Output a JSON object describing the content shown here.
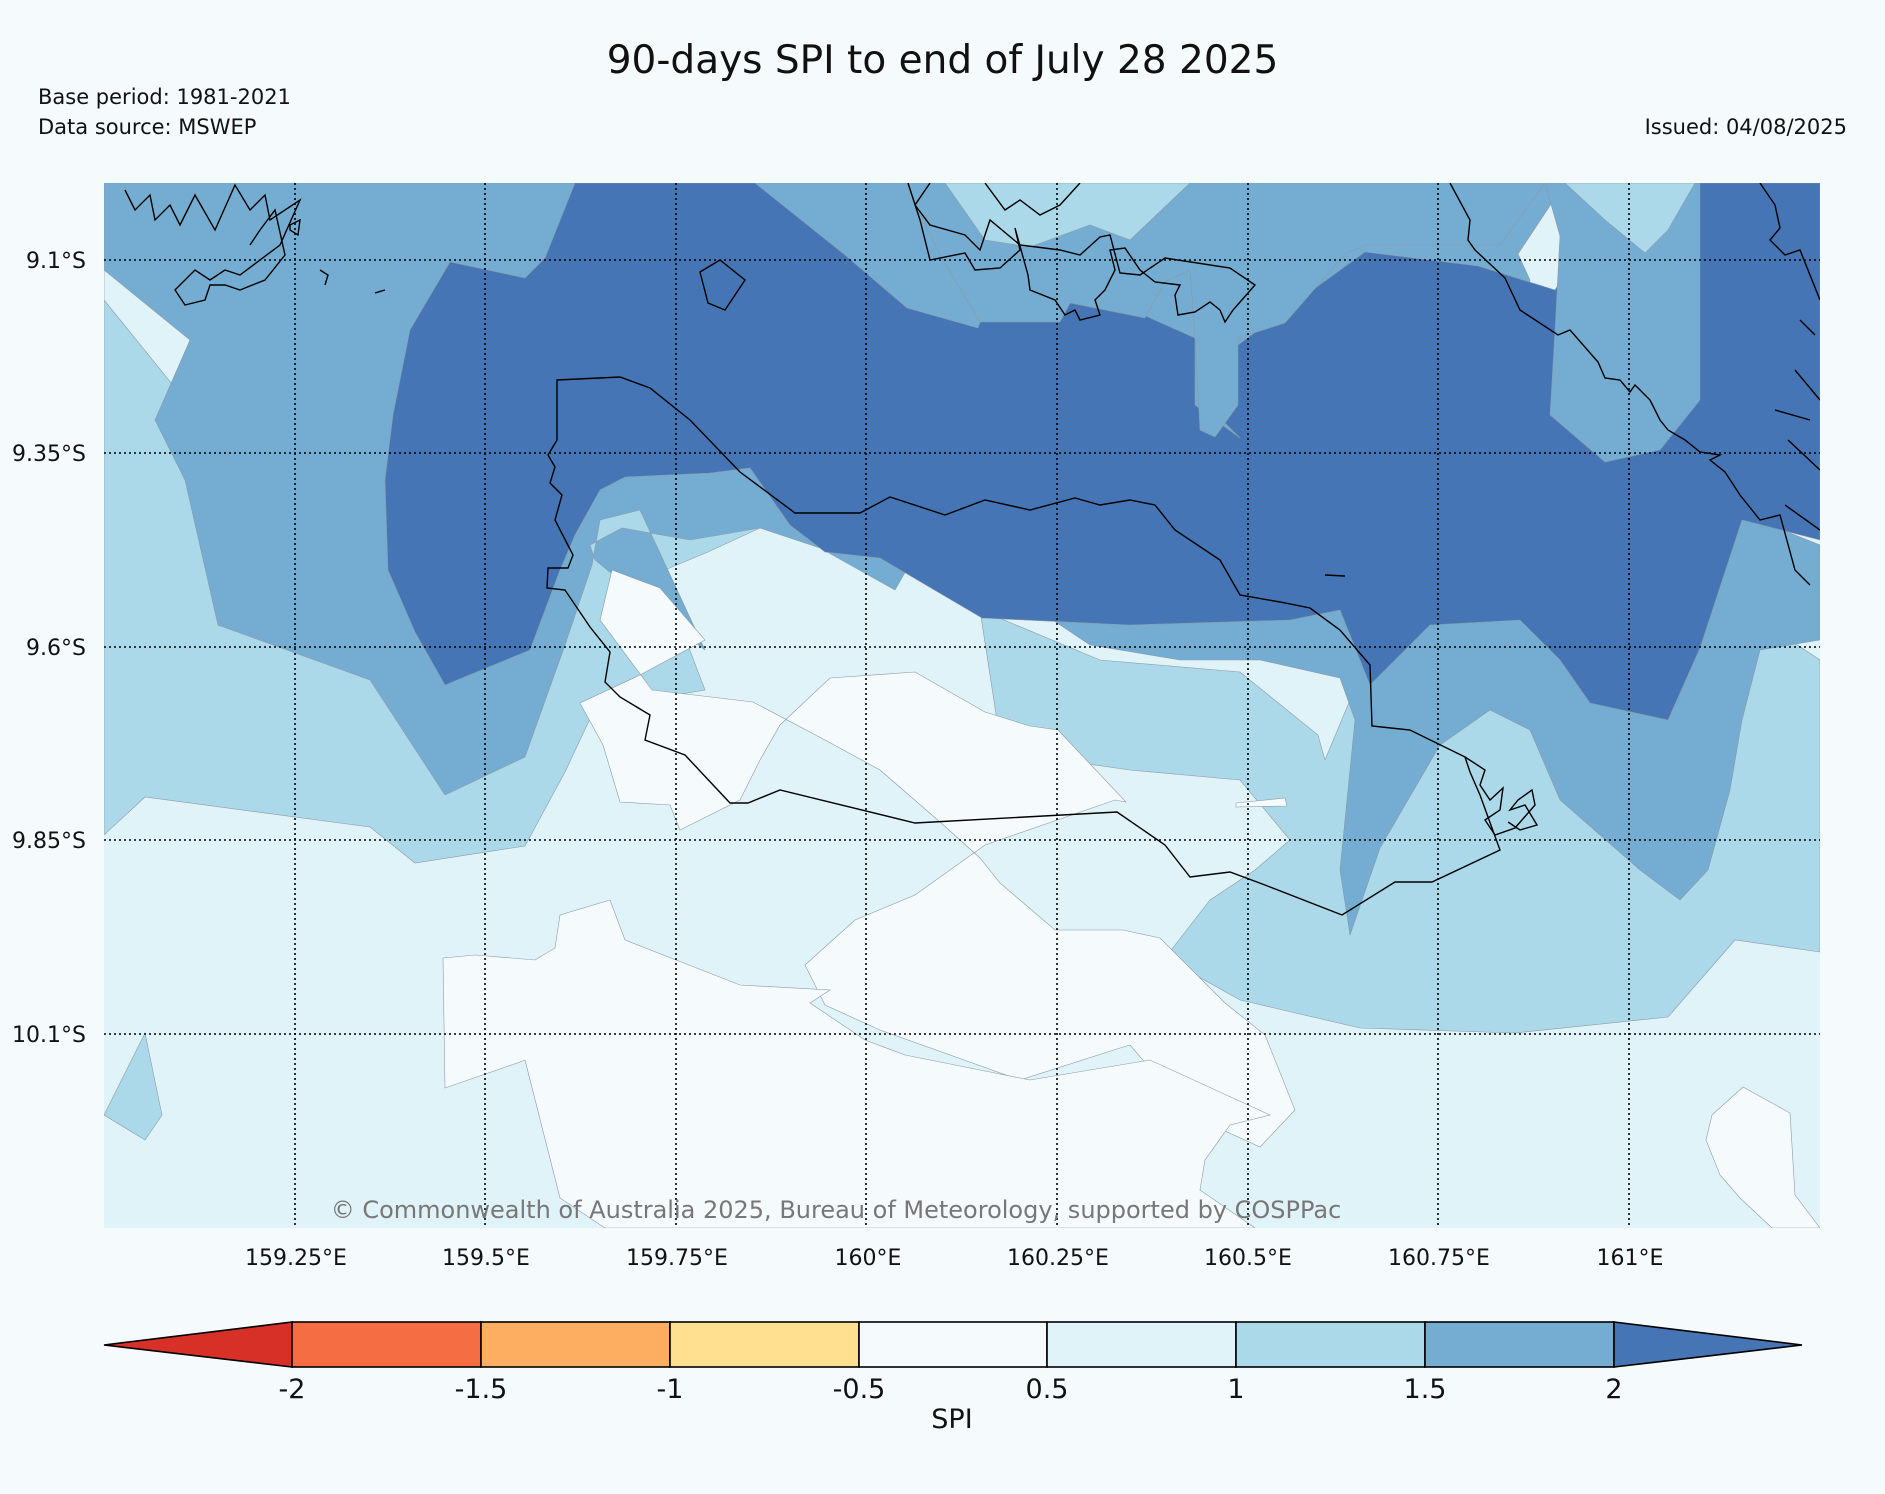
{
  "title": "90-days SPI to end of July 28 2025",
  "base_period": "Base period: 1981-2021",
  "data_source": "Data source: MSWEP",
  "issued": "Issued: 04/08/2025",
  "copyright": "© Commonwealth of Australia 2025, Bureau of Meteorology, supported by COSPPac",
  "map": {
    "lon_range": [
      159.0,
      161.25
    ],
    "lat_range": [
      -10.35,
      -9.0
    ],
    "lat_ticks": [
      {
        "value": -9.1,
        "label": "9.1°S"
      },
      {
        "value": -9.35,
        "label": "9.35°S"
      },
      {
        "value": -9.6,
        "label": "9.6°S"
      },
      {
        "value": -9.85,
        "label": "9.85°S"
      },
      {
        "value": -10.1,
        "label": "10.1°S"
      }
    ],
    "lon_ticks": [
      {
        "value": 159.25,
        "label": "159.25°E"
      },
      {
        "value": 159.5,
        "label": "159.5°E"
      },
      {
        "value": 159.75,
        "label": "159.75°E"
      },
      {
        "value": 160.0,
        "label": "160°E"
      },
      {
        "value": 160.25,
        "label": "160.25°E"
      },
      {
        "value": 160.5,
        "label": "160.5°E"
      },
      {
        "value": 160.75,
        "label": "160.75°E"
      },
      {
        "value": 161.0,
        "label": "161°E"
      }
    ],
    "grid": "dotted",
    "gridline_color": "#000000",
    "coastline_color": "#000000"
  },
  "colorbar": {
    "label": "SPI",
    "ticks": [
      "-2",
      "-1.5",
      "-1",
      "-0.5",
      "0.5",
      "1",
      "1.5",
      "2"
    ],
    "extend": "both",
    "colors": {
      "below_-2": "#d73027",
      "-2_to_-1.5": "#f46d43",
      "-1.5_to_-1": "#fdae61",
      "-1_to_-0.5": "#fee090",
      "-0.5_to_0.5": "#f5fafd",
      "0.5_to_1": "#e0f3f8",
      "1_to_1.5": "#abd9e9",
      "1.5_to_2": "#74add1",
      "above_2": "#4575b4"
    }
  }
}
